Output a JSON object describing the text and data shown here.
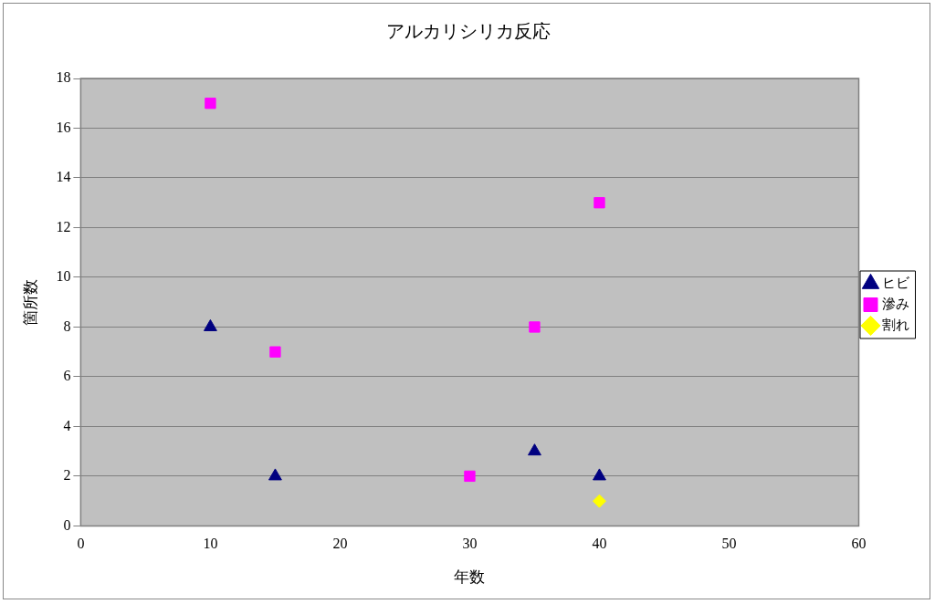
{
  "chart_data": {
    "type": "scatter",
    "title": "アルカリシリカ反応",
    "xlabel": "年数",
    "ylabel": "箇所数",
    "xlim": [
      0,
      60
    ],
    "xticks": [
      0,
      10,
      20,
      30,
      40,
      50,
      60
    ],
    "ylim": [
      0,
      18
    ],
    "yticks": [
      0,
      2,
      4,
      6,
      8,
      10,
      12,
      14,
      16,
      18
    ],
    "grid": "y",
    "legend": "right",
    "series": [
      {
        "name": "ヒビ",
        "color": "#000080",
        "marker": "triangle",
        "x": [
          10,
          15,
          35,
          40
        ],
        "values": [
          8,
          2,
          3,
          2
        ]
      },
      {
        "name": "滲み",
        "color": "#ff00ff",
        "marker": "square",
        "x": [
          10,
          15,
          30,
          35,
          40
        ],
        "values": [
          17,
          7,
          2,
          8,
          13
        ]
      },
      {
        "name": "割れ",
        "color": "#ffff00",
        "marker": "diamond",
        "x": [
          40
        ],
        "values": [
          1
        ]
      }
    ]
  }
}
